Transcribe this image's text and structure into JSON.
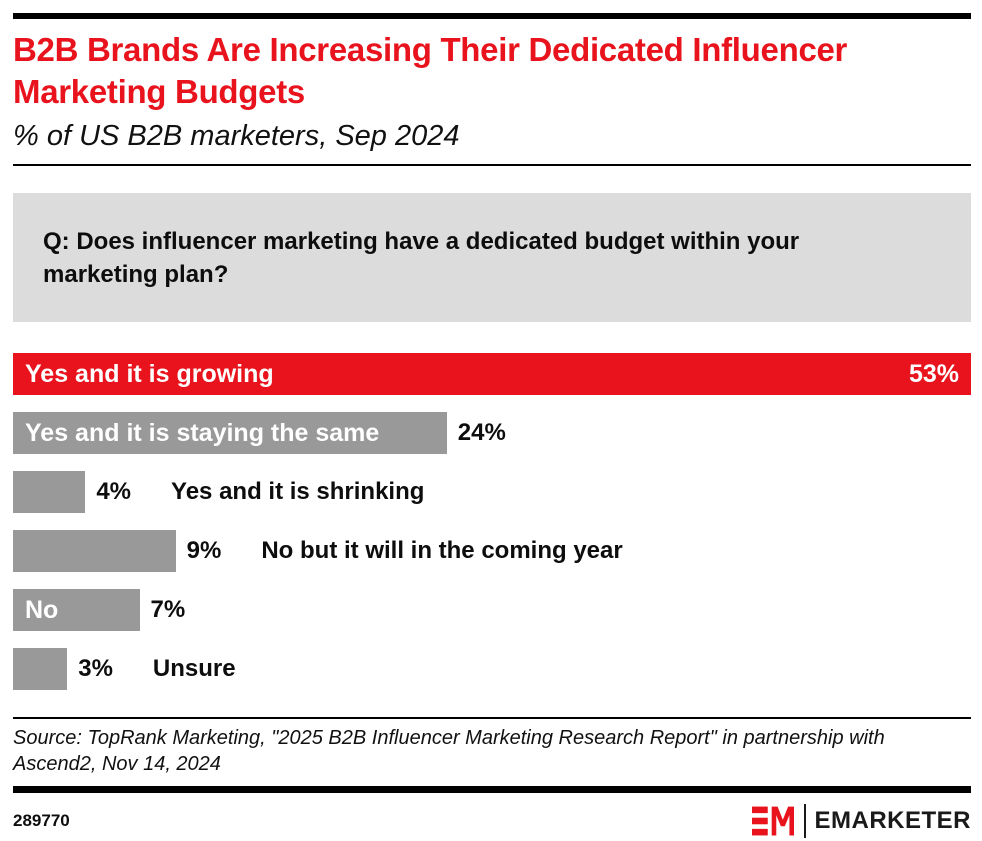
{
  "header": {
    "title": "B2B Brands Are Increasing Their Dedicated Influencer Marketing Budgets",
    "subtitle": "% of US B2B marketers, Sep 2024"
  },
  "question": {
    "text": "Q: Does influencer marketing have a dedicated budget within your marketing plan?"
  },
  "chart_data": {
    "type": "bar",
    "orientation": "horizontal",
    "title": "B2B Brands Are Increasing Their Dedicated Influencer Marketing Budgets",
    "subtitle": "% of US B2B marketers, Sep 2024",
    "unit": "%",
    "axis_scale_max": 53,
    "grid": false,
    "legend": false,
    "categories": [
      "Yes and it is growing",
      "Yes and it is staying the same",
      "Yes and it is shrinking",
      "No but it will in the coming year",
      "No",
      "Unsure"
    ],
    "values": [
      53,
      24,
      4,
      9,
      7,
      3
    ],
    "bars": [
      {
        "label": "Yes and it is growing",
        "value": 53,
        "value_label": "53%",
        "color": "#e8131c",
        "label_placement": "inside",
        "value_placement": "inside-right"
      },
      {
        "label": "Yes and it is staying the same",
        "value": 24,
        "value_label": "24%",
        "color": "#999999",
        "label_placement": "inside",
        "value_placement": "outside"
      },
      {
        "label": "Yes and it is shrinking",
        "value": 4,
        "value_label": "4%",
        "color": "#999999",
        "label_placement": "outside",
        "value_placement": "outside"
      },
      {
        "label": "No but it will in the coming year",
        "value": 9,
        "value_label": "9%",
        "color": "#999999",
        "label_placement": "outside",
        "value_placement": "outside"
      },
      {
        "label": "No",
        "value": 7,
        "value_label": "7%",
        "color": "#999999",
        "label_placement": "inside",
        "value_placement": "outside"
      },
      {
        "label": "Unsure",
        "value": 3,
        "value_label": "3%",
        "color": "#999999",
        "label_placement": "outside",
        "value_placement": "outside"
      }
    ]
  },
  "source": {
    "text": "Source: TopRank Marketing, \"2025 B2B Influencer Marketing Research Report\" in partnership with Ascend2, Nov 14, 2024"
  },
  "footer": {
    "chart_id": "289770",
    "brand_monogram": "EM",
    "brand_name": "EMARKETER"
  },
  "colors": {
    "accent_red": "#e8131c",
    "bar_gray": "#999999",
    "question_bg": "#dcdcdc",
    "rule_black": "#000000"
  },
  "icons": {
    "brand_logo": "emarketer-em-monogram"
  }
}
